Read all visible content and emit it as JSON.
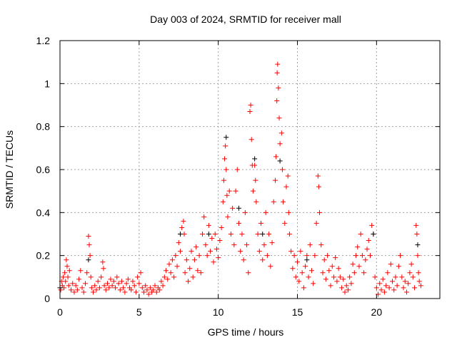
{
  "chart_data": {
    "type": "scatter",
    "title": "Day 003 of 2024, SRMTID for receiver mall",
    "xlabel": "GPS time / hours",
    "ylabel": "SRMTID / TECUs",
    "xlim": [
      0,
      24
    ],
    "ylim": [
      0,
      1.2
    ],
    "xticks": [
      0,
      5,
      10,
      15,
      20
    ],
    "yticks": [
      0,
      0.2,
      0.4,
      0.6,
      0.8,
      1,
      1.2
    ],
    "ytick_labels": [
      "0",
      "0.2",
      "0.4",
      "0.6",
      "0.8",
      "1",
      "1.2"
    ],
    "grid": true,
    "legend": "none",
    "series": [
      {
        "name": "black",
        "color": "#000000",
        "points": [
          [
            0,
            0.05
          ],
          [
            1.8,
            0.18
          ],
          [
            7.6,
            0.3
          ],
          [
            9.4,
            0.3
          ],
          [
            10.5,
            0.75
          ],
          [
            11.3,
            0.42
          ],
          [
            12.3,
            0.65
          ],
          [
            12.8,
            0.3
          ],
          [
            13.9,
            0.64
          ],
          [
            15.6,
            0.18
          ],
          [
            19.8,
            0.3
          ],
          [
            22.6,
            0.25
          ]
        ]
      },
      {
        "name": "red",
        "color": "#ff0000",
        "points": [
          [
            0.05,
            0.04
          ],
          [
            0.1,
            0.08
          ],
          [
            0.15,
            0.06
          ],
          [
            0.2,
            0.1
          ],
          [
            0.25,
            0.05
          ],
          [
            0.3,
            0.12
          ],
          [
            0.35,
            0.08
          ],
          [
            0.4,
            0.18
          ],
          [
            0.45,
            0.15
          ],
          [
            0.5,
            0.1
          ],
          [
            0.55,
            0.06
          ],
          [
            0.6,
            0.13
          ],
          [
            0.7,
            0.04
          ],
          [
            0.8,
            0.07
          ],
          [
            0.9,
            0.03
          ],
          [
            1.0,
            0.06
          ],
          [
            1.1,
            0.04
          ],
          [
            1.2,
            0.09
          ],
          [
            1.3,
            0.13
          ],
          [
            1.4,
            0.05
          ],
          [
            1.5,
            0.03
          ],
          [
            1.6,
            0.07
          ],
          [
            1.7,
            0.12
          ],
          [
            1.8,
            0.29
          ],
          [
            1.85,
            0.25
          ],
          [
            1.9,
            0.2
          ],
          [
            1.95,
            0.1
          ],
          [
            2.0,
            0.05
          ],
          [
            2.1,
            0.03
          ],
          [
            2.2,
            0.06
          ],
          [
            2.3,
            0.04
          ],
          [
            2.4,
            0.08
          ],
          [
            2.5,
            0.05
          ],
          [
            2.6,
            0.1
          ],
          [
            2.7,
            0.17
          ],
          [
            2.75,
            0.14
          ],
          [
            2.8,
            0.06
          ],
          [
            2.9,
            0.04
          ],
          [
            3.0,
            0.07
          ],
          [
            3.1,
            0.05
          ],
          [
            3.2,
            0.09
          ],
          [
            3.3,
            0.06
          ],
          [
            3.4,
            0.08
          ],
          [
            3.5,
            0.05
          ],
          [
            3.6,
            0.1
          ],
          [
            3.7,
            0.07
          ],
          [
            3.8,
            0.04
          ],
          [
            3.9,
            0.08
          ],
          [
            4.0,
            0.05
          ],
          [
            4.1,
            0.03
          ],
          [
            4.2,
            0.07
          ],
          [
            4.3,
            0.09
          ],
          [
            4.4,
            0.05
          ],
          [
            4.5,
            0.04
          ],
          [
            4.6,
            0.08
          ],
          [
            4.7,
            0.06
          ],
          [
            4.8,
            0.03
          ],
          [
            4.9,
            0.1
          ],
          [
            5.0,
            0.07
          ],
          [
            5.1,
            0.12
          ],
          [
            5.2,
            0.05
          ],
          [
            5.3,
            0.03
          ],
          [
            5.4,
            0.06
          ],
          [
            5.5,
            0.04
          ],
          [
            5.6,
            0.02
          ],
          [
            5.7,
            0.05
          ],
          [
            5.8,
            0.03
          ],
          [
            5.9,
            0.04
          ],
          [
            6.0,
            0.06
          ],
          [
            6.1,
            0.03
          ],
          [
            6.2,
            0.05
          ],
          [
            6.3,
            0.04
          ],
          [
            6.4,
            0.08
          ],
          [
            6.5,
            0.06
          ],
          [
            6.6,
            0.1
          ],
          [
            6.7,
            0.13
          ],
          [
            6.8,
            0.09
          ],
          [
            6.9,
            0.16
          ],
          [
            7.0,
            0.12
          ],
          [
            7.1,
            0.18
          ],
          [
            7.2,
            0.1
          ],
          [
            7.3,
            0.2
          ],
          [
            7.4,
            0.15
          ],
          [
            7.5,
            0.26
          ],
          [
            7.6,
            0.22
          ],
          [
            7.7,
            0.33
          ],
          [
            7.8,
            0.36
          ],
          [
            7.85,
            0.3
          ],
          [
            7.9,
            0.12
          ],
          [
            8.0,
            0.18
          ],
          [
            8.1,
            0.08
          ],
          [
            8.2,
            0.14
          ],
          [
            8.3,
            0.22
          ],
          [
            8.4,
            0.1
          ],
          [
            8.5,
            0.18
          ],
          [
            8.6,
            0.24
          ],
          [
            8.7,
            0.13
          ],
          [
            8.8,
            0.2
          ],
          [
            8.9,
            0.12
          ],
          [
            9.0,
            0.3
          ],
          [
            9.1,
            0.38
          ],
          [
            9.2,
            0.25
          ],
          [
            9.3,
            0.2
          ],
          [
            9.4,
            0.34
          ],
          [
            9.5,
            0.22
          ],
          [
            9.6,
            0.28
          ],
          [
            9.7,
            0.17
          ],
          [
            9.8,
            0.3
          ],
          [
            9.9,
            0.23
          ],
          [
            10.0,
            0.19
          ],
          [
            10.1,
            0.27
          ],
          [
            10.2,
            0.33
          ],
          [
            10.3,
            0.45
          ],
          [
            10.35,
            0.55
          ],
          [
            10.4,
            0.65
          ],
          [
            10.45,
            0.71
          ],
          [
            10.5,
            0.6
          ],
          [
            10.55,
            0.48
          ],
          [
            10.6,
            0.38
          ],
          [
            10.7,
            0.5
          ],
          [
            10.8,
            0.3
          ],
          [
            10.9,
            0.42
          ],
          [
            11.0,
            0.25
          ],
          [
            11.1,
            0.5
          ],
          [
            11.2,
            0.6
          ],
          [
            11.3,
            0.35
          ],
          [
            11.4,
            0.22
          ],
          [
            11.5,
            0.3
          ],
          [
            11.6,
            0.18
          ],
          [
            11.7,
            0.4
          ],
          [
            11.8,
            0.25
          ],
          [
            11.9,
            0.12
          ],
          [
            12.0,
            0.87
          ],
          [
            12.05,
            0.9
          ],
          [
            12.1,
            0.74
          ],
          [
            12.15,
            0.62
          ],
          [
            12.2,
            0.5
          ],
          [
            12.3,
            0.62
          ],
          [
            12.35,
            0.55
          ],
          [
            12.4,
            0.45
          ],
          [
            12.5,
            0.3
          ],
          [
            12.6,
            0.22
          ],
          [
            12.7,
            0.35
          ],
          [
            12.8,
            0.18
          ],
          [
            12.9,
            0.25
          ],
          [
            13.0,
            0.4
          ],
          [
            13.1,
            0.2
          ],
          [
            13.2,
            0.3
          ],
          [
            13.3,
            0.15
          ],
          [
            13.4,
            0.26
          ],
          [
            13.5,
            0.45
          ],
          [
            13.6,
            0.55
          ],
          [
            13.65,
            0.66
          ],
          [
            13.7,
            0.92
          ],
          [
            13.72,
            1.05
          ],
          [
            13.75,
            1.09
          ],
          [
            13.8,
            0.98
          ],
          [
            13.85,
            0.84
          ],
          [
            13.9,
            0.72
          ],
          [
            14.0,
            0.77
          ],
          [
            14.05,
            0.6
          ],
          [
            14.1,
            0.45
          ],
          [
            14.2,
            0.35
          ],
          [
            14.3,
            0.52
          ],
          [
            14.4,
            0.57
          ],
          [
            14.45,
            0.4
          ],
          [
            14.5,
            0.3
          ],
          [
            14.6,
            0.22
          ],
          [
            14.7,
            0.14
          ],
          [
            14.8,
            0.2
          ],
          [
            14.9,
            0.1
          ],
          [
            15.0,
            0.17
          ],
          [
            15.1,
            0.08
          ],
          [
            15.2,
            0.22
          ],
          [
            15.3,
            0.12
          ],
          [
            15.4,
            0.05
          ],
          [
            15.5,
            0.15
          ],
          [
            15.6,
            0.2
          ],
          [
            15.7,
            0.1
          ],
          [
            15.8,
            0.25
          ],
          [
            15.9,
            0.13
          ],
          [
            16.0,
            0.07
          ],
          [
            16.1,
            0.2
          ],
          [
            16.2,
            0.35
          ],
          [
            16.3,
            0.57
          ],
          [
            16.35,
            0.52
          ],
          [
            16.4,
            0.4
          ],
          [
            16.5,
            0.25
          ],
          [
            16.6,
            0.12
          ],
          [
            16.7,
            0.18
          ],
          [
            16.8,
            0.09
          ],
          [
            16.9,
            0.2
          ],
          [
            17.0,
            0.13
          ],
          [
            17.1,
            0.06
          ],
          [
            17.2,
            0.15
          ],
          [
            17.3,
            0.1
          ],
          [
            17.4,
            0.19
          ],
          [
            17.5,
            0.08
          ],
          [
            17.6,
            0.14
          ],
          [
            17.7,
            0.1
          ],
          [
            17.8,
            0.05
          ],
          [
            17.9,
            0.09
          ],
          [
            18.0,
            0.03
          ],
          [
            18.1,
            0.06
          ],
          [
            18.2,
            0.04
          ],
          [
            18.3,
            0.1
          ],
          [
            18.4,
            0.07
          ],
          [
            18.5,
            0.16
          ],
          [
            18.6,
            0.12
          ],
          [
            18.7,
            0.2
          ],
          [
            18.8,
            0.24
          ],
          [
            18.9,
            0.15
          ],
          [
            19.0,
            0.3
          ],
          [
            19.1,
            0.2
          ],
          [
            19.2,
            0.12
          ],
          [
            19.3,
            0.18
          ],
          [
            19.4,
            0.23
          ],
          [
            19.5,
            0.27
          ],
          [
            19.6,
            0.2
          ],
          [
            19.7,
            0.34
          ],
          [
            19.8,
            0.3
          ],
          [
            19.9,
            0.1
          ],
          [
            20.0,
            0.05
          ],
          [
            20.1,
            0.02
          ],
          [
            20.2,
            0.07
          ],
          [
            20.3,
            0.04
          ],
          [
            20.4,
            0.09
          ],
          [
            20.5,
            0.03
          ],
          [
            20.6,
            0.06
          ],
          [
            20.7,
            0.12
          ],
          [
            20.8,
            0.05
          ],
          [
            20.9,
            0.16
          ],
          [
            21.0,
            0.08
          ],
          [
            21.1,
            0.04
          ],
          [
            21.2,
            0.1
          ],
          [
            21.3,
            0.06
          ],
          [
            21.4,
            0.15
          ],
          [
            21.5,
            0.2
          ],
          [
            21.6,
            0.1
          ],
          [
            21.7,
            0.05
          ],
          [
            21.8,
            0.08
          ],
          [
            21.9,
            0.03
          ],
          [
            22.0,
            0.07
          ],
          [
            22.1,
            0.12
          ],
          [
            22.2,
            0.16
          ],
          [
            22.3,
            0.1
          ],
          [
            22.4,
            0.05
          ],
          [
            22.5,
            0.34
          ],
          [
            22.55,
            0.3
          ],
          [
            22.6,
            0.2
          ],
          [
            22.65,
            0.12
          ],
          [
            22.7,
            0.08
          ],
          [
            22.8,
            0.06
          ]
        ]
      }
    ]
  }
}
